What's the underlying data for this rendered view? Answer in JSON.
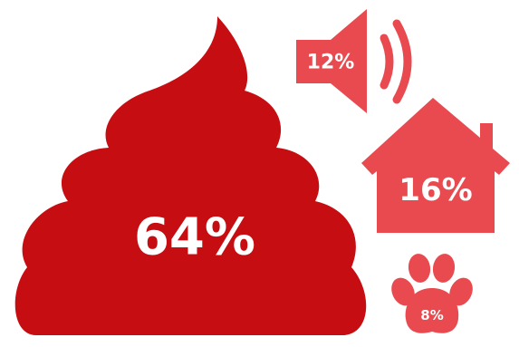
{
  "items": [
    {
      "icon": "poop-icon",
      "value": "64%",
      "color": "#C60D12"
    },
    {
      "icon": "speaker-icon",
      "value": "12%",
      "color": "#E84A50"
    },
    {
      "icon": "house-icon",
      "value": "16%",
      "color": "#E84A50"
    },
    {
      "icon": "paw-icon",
      "value": "8%",
      "color": "#E84A50"
    }
  ]
}
